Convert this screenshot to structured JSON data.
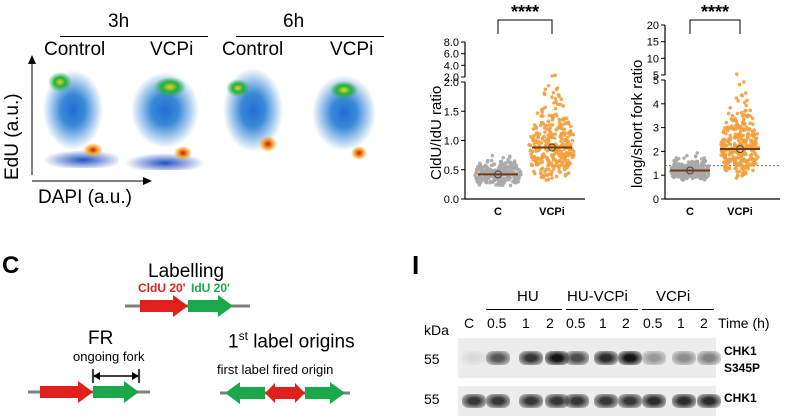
{
  "flow_panel": {
    "groups": [
      "3h",
      "6h"
    ],
    "conditions": [
      "Control",
      "VCPi",
      "Control",
      "VCPi"
    ],
    "y_axis_label": "EdU (a.u.)",
    "x_axis_label": "DAPI (a.u.)"
  },
  "chart_data": [
    {
      "type": "scatter",
      "title": "",
      "ylabel": "CldU/IdU ratio",
      "categories": [
        "C",
        "VCPi"
      ],
      "ylim": [
        0.0,
        8.0
      ],
      "axis_break": [
        2.0,
        2.0
      ],
      "yticks": [
        "0.0",
        "0.5",
        "1.0",
        "1.5",
        "2.0",
        "2.0",
        "4.0",
        "6.0",
        "8.0"
      ],
      "medians": [
        0.42,
        0.88
      ],
      "significance": "****",
      "colors": {
        "C": "#a9a9a9",
        "VCPi": "#f2a03d",
        "median": "#7a3a10"
      }
    },
    {
      "type": "scatter",
      "title": "",
      "ylabel": "long/short fork ratio",
      "categories": [
        "C",
        "VCPi"
      ],
      "ylim": [
        0,
        20
      ],
      "axis_break": [
        5,
        5
      ],
      "yticks": [
        "0",
        "1",
        "2",
        "3",
        "4",
        "5",
        "5",
        "10",
        "15",
        "20"
      ],
      "medians": [
        1.2,
        2.1
      ],
      "reference_line": 1.4,
      "significance": "****",
      "colors": {
        "C": "#a9a9a9",
        "VCPi": "#f2a03d",
        "median": "#7a3a10"
      }
    }
  ],
  "panel_c": {
    "letter": "C",
    "labelling_title": "Labelling",
    "cldu_label": "CldU 20'",
    "idu_label": "IdU 20'",
    "fr_title": "FR",
    "fr_subtitle": "ongoing fork",
    "origins_title_num": "1",
    "origins_title_sup": "st",
    "origins_title_rest": " label origins",
    "origins_subtitle": "first label fired origin",
    "colors": {
      "red": "#e0201b",
      "green": "#1aa84a",
      "gray": "#7f7f7f"
    }
  },
  "panel_i": {
    "letter": "I",
    "groups": [
      "HU",
      "HU-VCPi",
      "VCPi"
    ],
    "kda_label": "kDa",
    "lanes": [
      "C",
      "0.5",
      "1",
      "2",
      "0.5",
      "1",
      "2",
      "0.5",
      "1",
      "2"
    ],
    "time_label": "Time (h)",
    "blots": [
      {
        "marker": "55",
        "protein": "CHK1",
        "protein_line2": "S345P",
        "intensities": [
          0.05,
          0.65,
          0.8,
          0.95,
          0.7,
          0.85,
          0.95,
          0.35,
          0.4,
          0.45
        ]
      },
      {
        "marker": "55",
        "protein": "CHK1",
        "protein_line2": "",
        "intensities": [
          0.8,
          0.8,
          0.8,
          0.8,
          0.8,
          0.8,
          0.8,
          0.85,
          0.85,
          0.85
        ]
      }
    ]
  }
}
